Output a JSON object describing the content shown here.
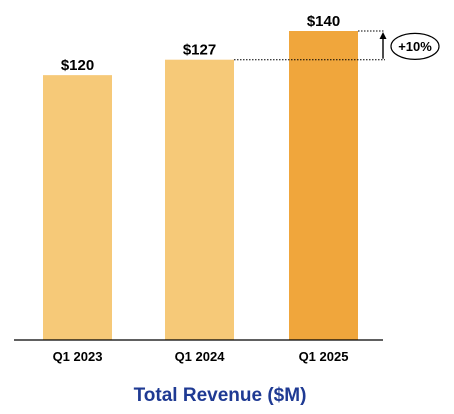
{
  "chart_data": {
    "type": "bar",
    "categories": [
      "Q1 2023",
      "Q1 2024",
      "Q1 2025"
    ],
    "values": [
      120,
      127,
      140
    ],
    "value_labels": [
      "$120",
      "$127",
      "$140"
    ],
    "bar_colors": [
      "#f6c978",
      "#f6c978",
      "#f0a63c"
    ],
    "title": "Total Revenue ($M)",
    "xlabel": "",
    "ylabel": "",
    "ylim": [
      0,
      140
    ],
    "grid": false,
    "annotation": {
      "text": "+10%",
      "from_category": "Q1 2024",
      "to_category": "Q1 2025"
    },
    "colors": {
      "axis": "#000000",
      "title": "#1f3a93"
    }
  }
}
